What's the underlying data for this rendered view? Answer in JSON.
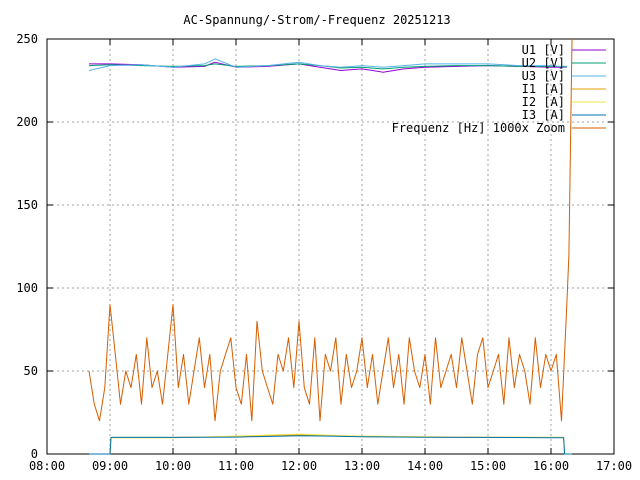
{
  "chart_data": {
    "type": "line",
    "title": "AC-Spannung/-Strom/-Frequenz 20251213",
    "xlabel": "",
    "ylabel": "",
    "xlim": [
      "08:00",
      "17:00"
    ],
    "ylim": [
      0,
      250
    ],
    "x_ticks": [
      "08:00",
      "09:00",
      "10:00",
      "11:00",
      "12:00",
      "13:00",
      "14:00",
      "15:00",
      "16:00",
      "17:00"
    ],
    "y_ticks": [
      "0",
      "50",
      "100",
      "150",
      "200",
      "250"
    ],
    "grid": true,
    "legend_position": "top-right",
    "series": [
      {
        "name": "U1 [V]",
        "color": "#9400d3",
        "x": [
          "08:40",
          "09:00",
          "09:30",
          "10:00",
          "10:30",
          "10:40",
          "11:00",
          "11:30",
          "12:00",
          "12:20",
          "12:40",
          "13:00",
          "13:20",
          "13:40",
          "14:00",
          "14:30",
          "15:00",
          "15:30",
          "16:00",
          "16:15"
        ],
        "values": [
          235,
          235,
          234.5,
          233,
          233.5,
          236,
          233,
          233.5,
          235,
          233,
          231,
          232,
          230,
          232,
          233,
          233.5,
          234,
          233.5,
          233,
          233
        ]
      },
      {
        "name": "U2 [V]",
        "color": "#009e73",
        "x": [
          "08:40",
          "09:00",
          "09:30",
          "10:00",
          "10:30",
          "10:40",
          "11:00",
          "11:30",
          "12:00",
          "12:20",
          "12:40",
          "13:00",
          "13:20",
          "13:40",
          "14:00",
          "14:30",
          "15:00",
          "15:30",
          "16:00",
          "16:15"
        ],
        "values": [
          234,
          234.5,
          234,
          233.5,
          234,
          235,
          233.5,
          234,
          235,
          234,
          232.5,
          233,
          232,
          233,
          233.5,
          234,
          234,
          233.5,
          233.5,
          233.5
        ]
      },
      {
        "name": "U3 [V]",
        "color": "#56b4e9",
        "x": [
          "08:40",
          "09:00",
          "09:30",
          "10:00",
          "10:30",
          "10:40",
          "11:00",
          "11:30",
          "12:00",
          "12:20",
          "12:40",
          "13:00",
          "13:20",
          "13:40",
          "14:00",
          "14:30",
          "15:00",
          "15:30",
          "16:00",
          "16:15"
        ],
        "values": [
          231,
          234,
          234.5,
          233,
          235,
          238,
          233,
          234,
          236,
          234,
          233,
          234,
          233,
          234,
          235,
          235,
          235,
          234,
          234,
          233
        ]
      },
      {
        "name": "I1 [A]",
        "color": "#e69f00",
        "x": [
          "08:40",
          "09:00",
          "09:01",
          "10:00",
          "11:00",
          "12:00",
          "12:30",
          "13:00",
          "14:00",
          "15:00",
          "16:00",
          "16:12",
          "16:13",
          "16:20"
        ],
        "values": [
          0,
          0,
          10,
          10,
          10.5,
          11.5,
          11,
          10.5,
          10.2,
          10,
          10,
          10,
          0,
          0
        ]
      },
      {
        "name": "I2 [A]",
        "color": "#f0e442",
        "x": [
          "08:40",
          "09:00",
          "09:01",
          "10:00",
          "11:00",
          "12:00",
          "12:30",
          "13:00",
          "14:00",
          "15:00",
          "16:00",
          "16:12",
          "16:13",
          "16:20"
        ],
        "values": [
          0,
          0,
          9.8,
          9.8,
          10.8,
          12,
          11.3,
          10.8,
          10.4,
          10.1,
          10,
          10,
          0,
          0
        ]
      },
      {
        "name": "I3 [A]",
        "color": "#0072b2",
        "x": [
          "08:40",
          "09:00",
          "09:01",
          "10:00",
          "11:00",
          "12:00",
          "12:30",
          "13:00",
          "14:00",
          "15:00",
          "16:00",
          "16:12",
          "16:13",
          "16:20"
        ],
        "values": [
          0,
          0,
          10,
          10,
          10.2,
          11,
          10.8,
          10.4,
          10.1,
          10,
          9.8,
          9.8,
          0,
          0
        ]
      },
      {
        "name": "Frequenz [Hz] 1000x Zoom",
        "color": "#d55e00",
        "x": [
          "08:40",
          "08:45",
          "08:50",
          "08:55",
          "09:00",
          "09:05",
          "09:10",
          "09:15",
          "09:20",
          "09:25",
          "09:30",
          "09:35",
          "09:40",
          "09:45",
          "09:50",
          "09:55",
          "10:00",
          "10:05",
          "10:10",
          "10:15",
          "10:20",
          "10:25",
          "10:30",
          "10:35",
          "10:40",
          "10:45",
          "10:50",
          "10:55",
          "11:00",
          "11:05",
          "11:10",
          "11:15",
          "11:20",
          "11:25",
          "11:30",
          "11:35",
          "11:40",
          "11:45",
          "11:50",
          "11:55",
          "12:00",
          "12:05",
          "12:10",
          "12:15",
          "12:20",
          "12:25",
          "12:30",
          "12:35",
          "12:40",
          "12:45",
          "12:50",
          "12:55",
          "13:00",
          "13:05",
          "13:10",
          "13:15",
          "13:20",
          "13:25",
          "13:30",
          "13:35",
          "13:40",
          "13:45",
          "13:50",
          "13:55",
          "14:00",
          "14:05",
          "14:10",
          "14:15",
          "14:20",
          "14:25",
          "14:30",
          "14:35",
          "14:40",
          "14:45",
          "14:50",
          "14:55",
          "15:00",
          "15:05",
          "15:10",
          "15:15",
          "15:20",
          "15:25",
          "15:30",
          "15:35",
          "15:40",
          "15:45",
          "15:50",
          "15:55",
          "16:00",
          "16:05",
          "16:10",
          "16:15",
          "16:17",
          "16:20"
        ],
        "values": [
          50,
          30,
          20,
          40,
          90,
          60,
          30,
          50,
          40,
          60,
          30,
          70,
          40,
          50,
          30,
          60,
          90,
          40,
          60,
          30,
          50,
          70,
          40,
          60,
          20,
          50,
          60,
          70,
          40,
          30,
          60,
          20,
          80,
          50,
          40,
          30,
          60,
          50,
          70,
          40,
          80,
          40,
          30,
          70,
          20,
          60,
          50,
          70,
          30,
          60,
          40,
          50,
          70,
          40,
          60,
          30,
          50,
          70,
          40,
          60,
          30,
          70,
          50,
          40,
          60,
          30,
          70,
          40,
          50,
          60,
          40,
          70,
          50,
          30,
          60,
          70,
          40,
          50,
          60,
          30,
          70,
          40,
          60,
          50,
          30,
          70,
          40,
          60,
          50,
          60,
          20,
          90,
          120,
          250
        ]
      }
    ]
  }
}
